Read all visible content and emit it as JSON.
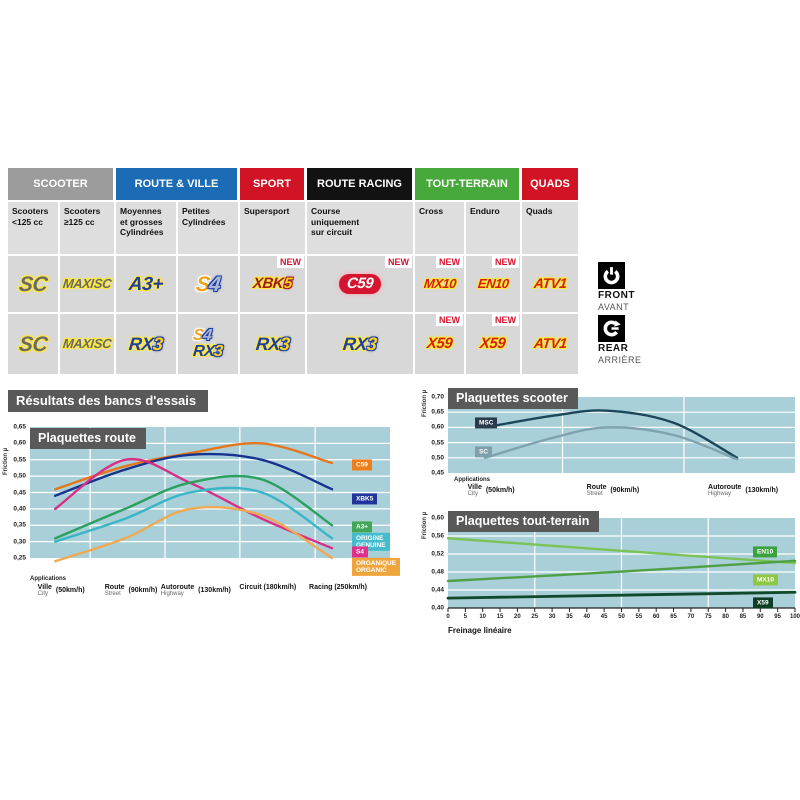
{
  "section_title": "Résultats des bancs d'essais",
  "new_badge_label": "NEW",
  "positions": {
    "front": {
      "en": "FRONT",
      "fr": "AVANT"
    },
    "rear": {
      "en": "REAR",
      "fr": "ARRIÈRE"
    }
  },
  "table": {
    "groups": [
      {
        "label": "SCOOTER",
        "color": "#9c9c9c",
        "span": 2
      },
      {
        "label": "ROUTE & VILLE",
        "color": "#1b6cb5",
        "span": 2
      },
      {
        "label": "SPORT",
        "color": "#d01325",
        "span": 1
      },
      {
        "label": "ROUTE RACING",
        "color": "#121212",
        "span": 1
      },
      {
        "label": "TOUT-TERRAIN",
        "color": "#47a93b",
        "span": 2
      },
      {
        "label": "QUADS",
        "color": "#d01325",
        "span": 1
      }
    ],
    "subheaders": [
      "Scooters\n<125 cc",
      "Scooters\n≥125 cc",
      "Moyennes\net grosses\nCylindrées",
      "Petites\nCylindrées",
      "Supersport",
      "Course\nuniquement\nsur circuit",
      "Cross",
      "Enduro",
      "Quads"
    ],
    "rows": [
      {
        "position": "front",
        "cells": [
          {
            "logo": "SC"
          },
          {
            "logo": "MAXISC"
          },
          {
            "logo": "A3PLUS"
          },
          {
            "logo": "S4"
          },
          {
            "logo": "XBK5",
            "new": true
          },
          {
            "logo": "C59",
            "new": true
          },
          {
            "logo": "MX10",
            "new": true
          },
          {
            "logo": "EN10",
            "new": true
          },
          {
            "logo": "ATV1"
          }
        ]
      },
      {
        "position": "rear",
        "cells": [
          {
            "logo": "SC"
          },
          {
            "logo": "MAXISC"
          },
          {
            "logo": "RX3"
          },
          {
            "logo": "S4RX3"
          },
          {
            "logo": "RX3"
          },
          {
            "logo": "RX3"
          },
          {
            "logo": "X59",
            "new": true
          },
          {
            "logo": "X59",
            "new": true
          },
          {
            "logo": "ATV1"
          }
        ]
      }
    ],
    "logo_defs": {
      "SC": {
        "lines": [
          [
            {
              "t": "SC",
              "c": "gray",
              "o": "y",
              "sz": 21
            }
          ]
        ]
      },
      "MAXISC": {
        "lines": [
          [
            {
              "t": "MAXI",
              "c": "gray",
              "o": "y",
              "sz": 13
            },
            {
              "t": "SC",
              "c": "gray",
              "o": "y",
              "sz": 13,
              "sub": true
            }
          ]
        ]
      },
      "A3PLUS": {
        "lines": [
          [
            {
              "t": "A3+",
              "c": "blue",
              "o": "y",
              "sz": 19
            }
          ]
        ]
      },
      "S4": {
        "lines": [
          [
            {
              "t": "S",
              "c": "orange",
              "o": "w",
              "sz": 21
            },
            {
              "t": "4",
              "c": "silver",
              "o": "n",
              "sz": 21
            }
          ]
        ]
      },
      "XBK5": {
        "lines": [
          [
            {
              "t": "XBK",
              "c": "dkred",
              "o": "y",
              "sz": 15
            },
            {
              "t": "5",
              "c": "yellow",
              "o": "r",
              "sz": 15
            }
          ]
        ]
      },
      "C59": {
        "capsule": true,
        "lines": [
          [
            {
              "t": "C59",
              "c": "white",
              "sz": 15
            }
          ]
        ]
      },
      "MX10": {
        "lines": [
          [
            {
              "t": "MX10",
              "c": "red",
              "o": "y",
              "sz": 13
            }
          ]
        ]
      },
      "EN10": {
        "lines": [
          [
            {
              "t": "EN10",
              "c": "red",
              "o": "y",
              "sz": 13
            }
          ]
        ]
      },
      "ATV1": {
        "lines": [
          [
            {
              "t": "ATV1",
              "c": "red",
              "o": "y",
              "sz": 14
            }
          ]
        ]
      },
      "RX3": {
        "lines": [
          [
            {
              "t": "RX",
              "c": "blue",
              "o": "y",
              "sz": 18
            },
            {
              "t": "3",
              "c": "yellow",
              "o": "b",
              "sz": 18
            }
          ]
        ]
      },
      "X59": {
        "lines": [
          [
            {
              "t": "X59",
              "c": "red",
              "o": "y",
              "sz": 15
            }
          ]
        ]
      },
      "S4RX3": {
        "lines": [
          [
            {
              "t": "S",
              "c": "orange",
              "o": "w",
              "sz": 16
            },
            {
              "t": "4",
              "c": "silver",
              "o": "n",
              "sz": 16
            }
          ],
          [
            {
              "t": "RX",
              "c": "blue",
              "o": "y",
              "sz": 16
            },
            {
              "t": "3",
              "c": "yellow",
              "o": "b",
              "sz": 16
            }
          ]
        ]
      }
    },
    "part_colors": {
      "gray": "#6a6a6a",
      "blue": "#1e3ea6",
      "yellow": "#ffd41e",
      "dkred": "#a01d1d",
      "red": "#d32011",
      "white": "#ffffff",
      "silver": "#aab8d2",
      "orange": "#f0a31e"
    },
    "outline_colors": {
      "y": "#ffe93c",
      "r": "#a01d1d",
      "w": "#ffffff",
      "n": "#1e3ea6",
      "b": "#1e3ea6"
    }
  },
  "chart_data": [
    {
      "id": "route",
      "type": "line",
      "title": "Plaquettes route",
      "ylabel": "Friction µ",
      "applications_label": "Applications",
      "ylim": [
        0.25,
        0.65
      ],
      "ytick_step": 0.05,
      "plot_bg": "#a9cfd8",
      "grid": true,
      "legend_position": "right",
      "stations": [
        {
          "frac": 0.07,
          "fr": "Ville",
          "en": "City",
          "speed": "(50km/h)"
        },
        {
          "frac": 0.264,
          "fr": "Route",
          "en": "Street",
          "speed": "(90km/h)"
        },
        {
          "frac": 0.444,
          "fr": "Autoroute",
          "en": "Highway",
          "speed": "(130km/h)"
        },
        {
          "frac": 0.644,
          "fr": "Circuit",
          "en": "",
          "speed": "(180km/h)"
        },
        {
          "frac": 0.839,
          "fr": "Racing",
          "en": "",
          "speed": "(250km/h)"
        }
      ],
      "series": [
        {
          "name": "C59",
          "color": "#e4771c",
          "values": [
            0.46,
            0.53,
            0.57,
            0.6,
            0.54
          ]
        },
        {
          "name": "XBK5",
          "color": "#16338f",
          "values": [
            0.44,
            0.52,
            0.565,
            0.55,
            0.46
          ]
        },
        {
          "name": "S4",
          "color": "#d92e86",
          "values": [
            0.4,
            0.55,
            0.48,
            0.37,
            0.28
          ]
        },
        {
          "name": "A3+",
          "color": "#2ba05f",
          "values": [
            0.31,
            0.4,
            0.48,
            0.49,
            0.35
          ]
        },
        {
          "name": "ORIGINE/GENUINE",
          "color": "#38b6c6",
          "values": [
            0.3,
            0.37,
            0.45,
            0.45,
            0.31
          ]
        },
        {
          "name": "ORGANIQUE/ORGANIC",
          "color": "#edaa52",
          "values": [
            0.24,
            0.31,
            0.4,
            0.38,
            0.25
          ]
        }
      ],
      "legend": [
        {
          "lines": [
            "C59"
          ],
          "color": "#ef7d1a",
          "mu": 0.535
        },
        {
          "lines": [
            "XBK5"
          ],
          "color": "#20349b",
          "mu": 0.43
        },
        {
          "lines": [
            "A3+"
          ],
          "color": "#41a757",
          "mu": 0.345
        },
        {
          "lines": [
            "ORIGINE",
            "GENUINE"
          ],
          "color": "#45bccb",
          "mu": 0.3
        },
        {
          "lines": [
            "S4"
          ],
          "color": "#e0308a",
          "mu": 0.268
        },
        {
          "lines": [
            "ORGANIQUE",
            "ORGANIC"
          ],
          "color": "#f0a43c",
          "mu": 0.222
        }
      ]
    },
    {
      "id": "scooter",
      "type": "line",
      "title": "Plaquettes scooter",
      "ylabel": "Friction µ",
      "applications_label": "Applications",
      "ylim": [
        0.45,
        0.7
      ],
      "ytick_step": 0.05,
      "plot_bg": "#a9cfd8",
      "grid": true,
      "legend_position": "left-inside",
      "stations": [
        {
          "frac": 0.107,
          "fr": "Ville",
          "en": "City",
          "speed": "(50km/h)"
        },
        {
          "frac": 0.458,
          "fr": "Route",
          "en": "Street",
          "speed": "(90km/h)"
        },
        {
          "frac": 0.833,
          "fr": "Autoroute",
          "en": "Highway",
          "speed": "(130km/h)"
        }
      ],
      "series": [
        {
          "name": "MSC",
          "color": "#1c4758",
          "x": [
            0.107,
            0.3,
            0.458,
            0.65,
            0.833
          ],
          "values": [
            0.6,
            0.638,
            0.655,
            0.615,
            0.5
          ]
        },
        {
          "name": "SC",
          "color": "#7fa2ae",
          "x": [
            0.107,
            0.3,
            0.458,
            0.65,
            0.833
          ],
          "values": [
            0.5,
            0.565,
            0.6,
            0.575,
            0.495
          ]
        }
      ],
      "legend": [
        {
          "lines": [
            "MSC"
          ],
          "color": "#2a3b4d",
          "mu": 0.615
        },
        {
          "lines": [
            "SC"
          ],
          "color": "#7f9faa",
          "mu": 0.518
        }
      ]
    },
    {
      "id": "tt",
      "type": "line",
      "title": "Plaquettes tout-terrain",
      "ylabel": "Friction µ",
      "xlabel": "Freinage linéaire",
      "ylim": [
        0.4,
        0.6
      ],
      "ytick_step": 0.04,
      "xticks": {
        "min": 0,
        "max": 100,
        "step": 5
      },
      "plot_bg": "#a9cfd8",
      "grid": true,
      "legend_position": "right-inside",
      "series": [
        {
          "name": "EN10",
          "color": "#7cc356",
          "x": [
            0,
            50,
            100
          ],
          "values": [
            0.555,
            0.527,
            0.5
          ]
        },
        {
          "name": "MX10",
          "color": "#4f9f45",
          "x": [
            0,
            50,
            100
          ],
          "values": [
            0.46,
            0.481,
            0.505
          ]
        },
        {
          "name": "X59",
          "color": "#114a2b",
          "x": [
            0,
            100
          ],
          "w": 2.8,
          "values": [
            0.422,
            0.435
          ]
        }
      ],
      "legend": [
        {
          "lines": [
            "EN10"
          ],
          "color": "#3ba33d",
          "mu": 0.525
        },
        {
          "lines": [
            "MX10"
          ],
          "color": "#8fc644",
          "mu": 0.463
        },
        {
          "lines": [
            "X59"
          ],
          "color": "#0d3d22",
          "mu": 0.412
        }
      ]
    }
  ]
}
